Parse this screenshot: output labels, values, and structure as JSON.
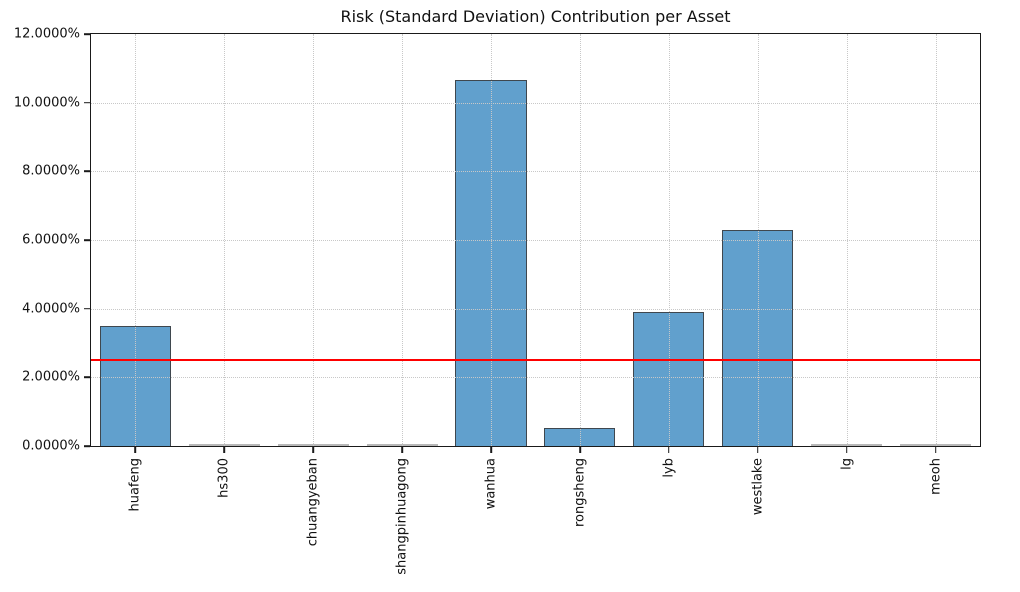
{
  "chart_data": {
    "type": "bar",
    "title": "Risk (Standard Deviation) Contribution per Asset",
    "categories": [
      "huafeng",
      "hs300",
      "chuangyeban",
      "shangpinhuagong",
      "wanhua",
      "rongsheng",
      "lyb",
      "westlake",
      "lg",
      "meoh"
    ],
    "values": [
      3.5,
      0.0,
      0.0,
      0.0,
      10.65,
      0.53,
      3.9,
      6.28,
      0.0,
      0.0
    ],
    "value_unit": "percent",
    "xlabel": "",
    "ylabel": "",
    "ylim": [
      0,
      12
    ],
    "ytick_step": 2,
    "ytick_labels": [
      "0.0000%",
      "2.0000%",
      "4.0000%",
      "6.0000%",
      "8.0000%",
      "10.0000%",
      "12.0000%"
    ],
    "reference_line": {
      "value": 2.5,
      "color": "#ff0000"
    },
    "grid": {
      "visible": true,
      "style": "dotted",
      "color": "#c8c8c8",
      "drawn_over_bars": true
    },
    "bar_color": "#61a0cd",
    "bar_edge_color": "#3f474e",
    "zero_bar_edge_color": "#b8b8b8",
    "bar_width_fraction": 0.8
  }
}
